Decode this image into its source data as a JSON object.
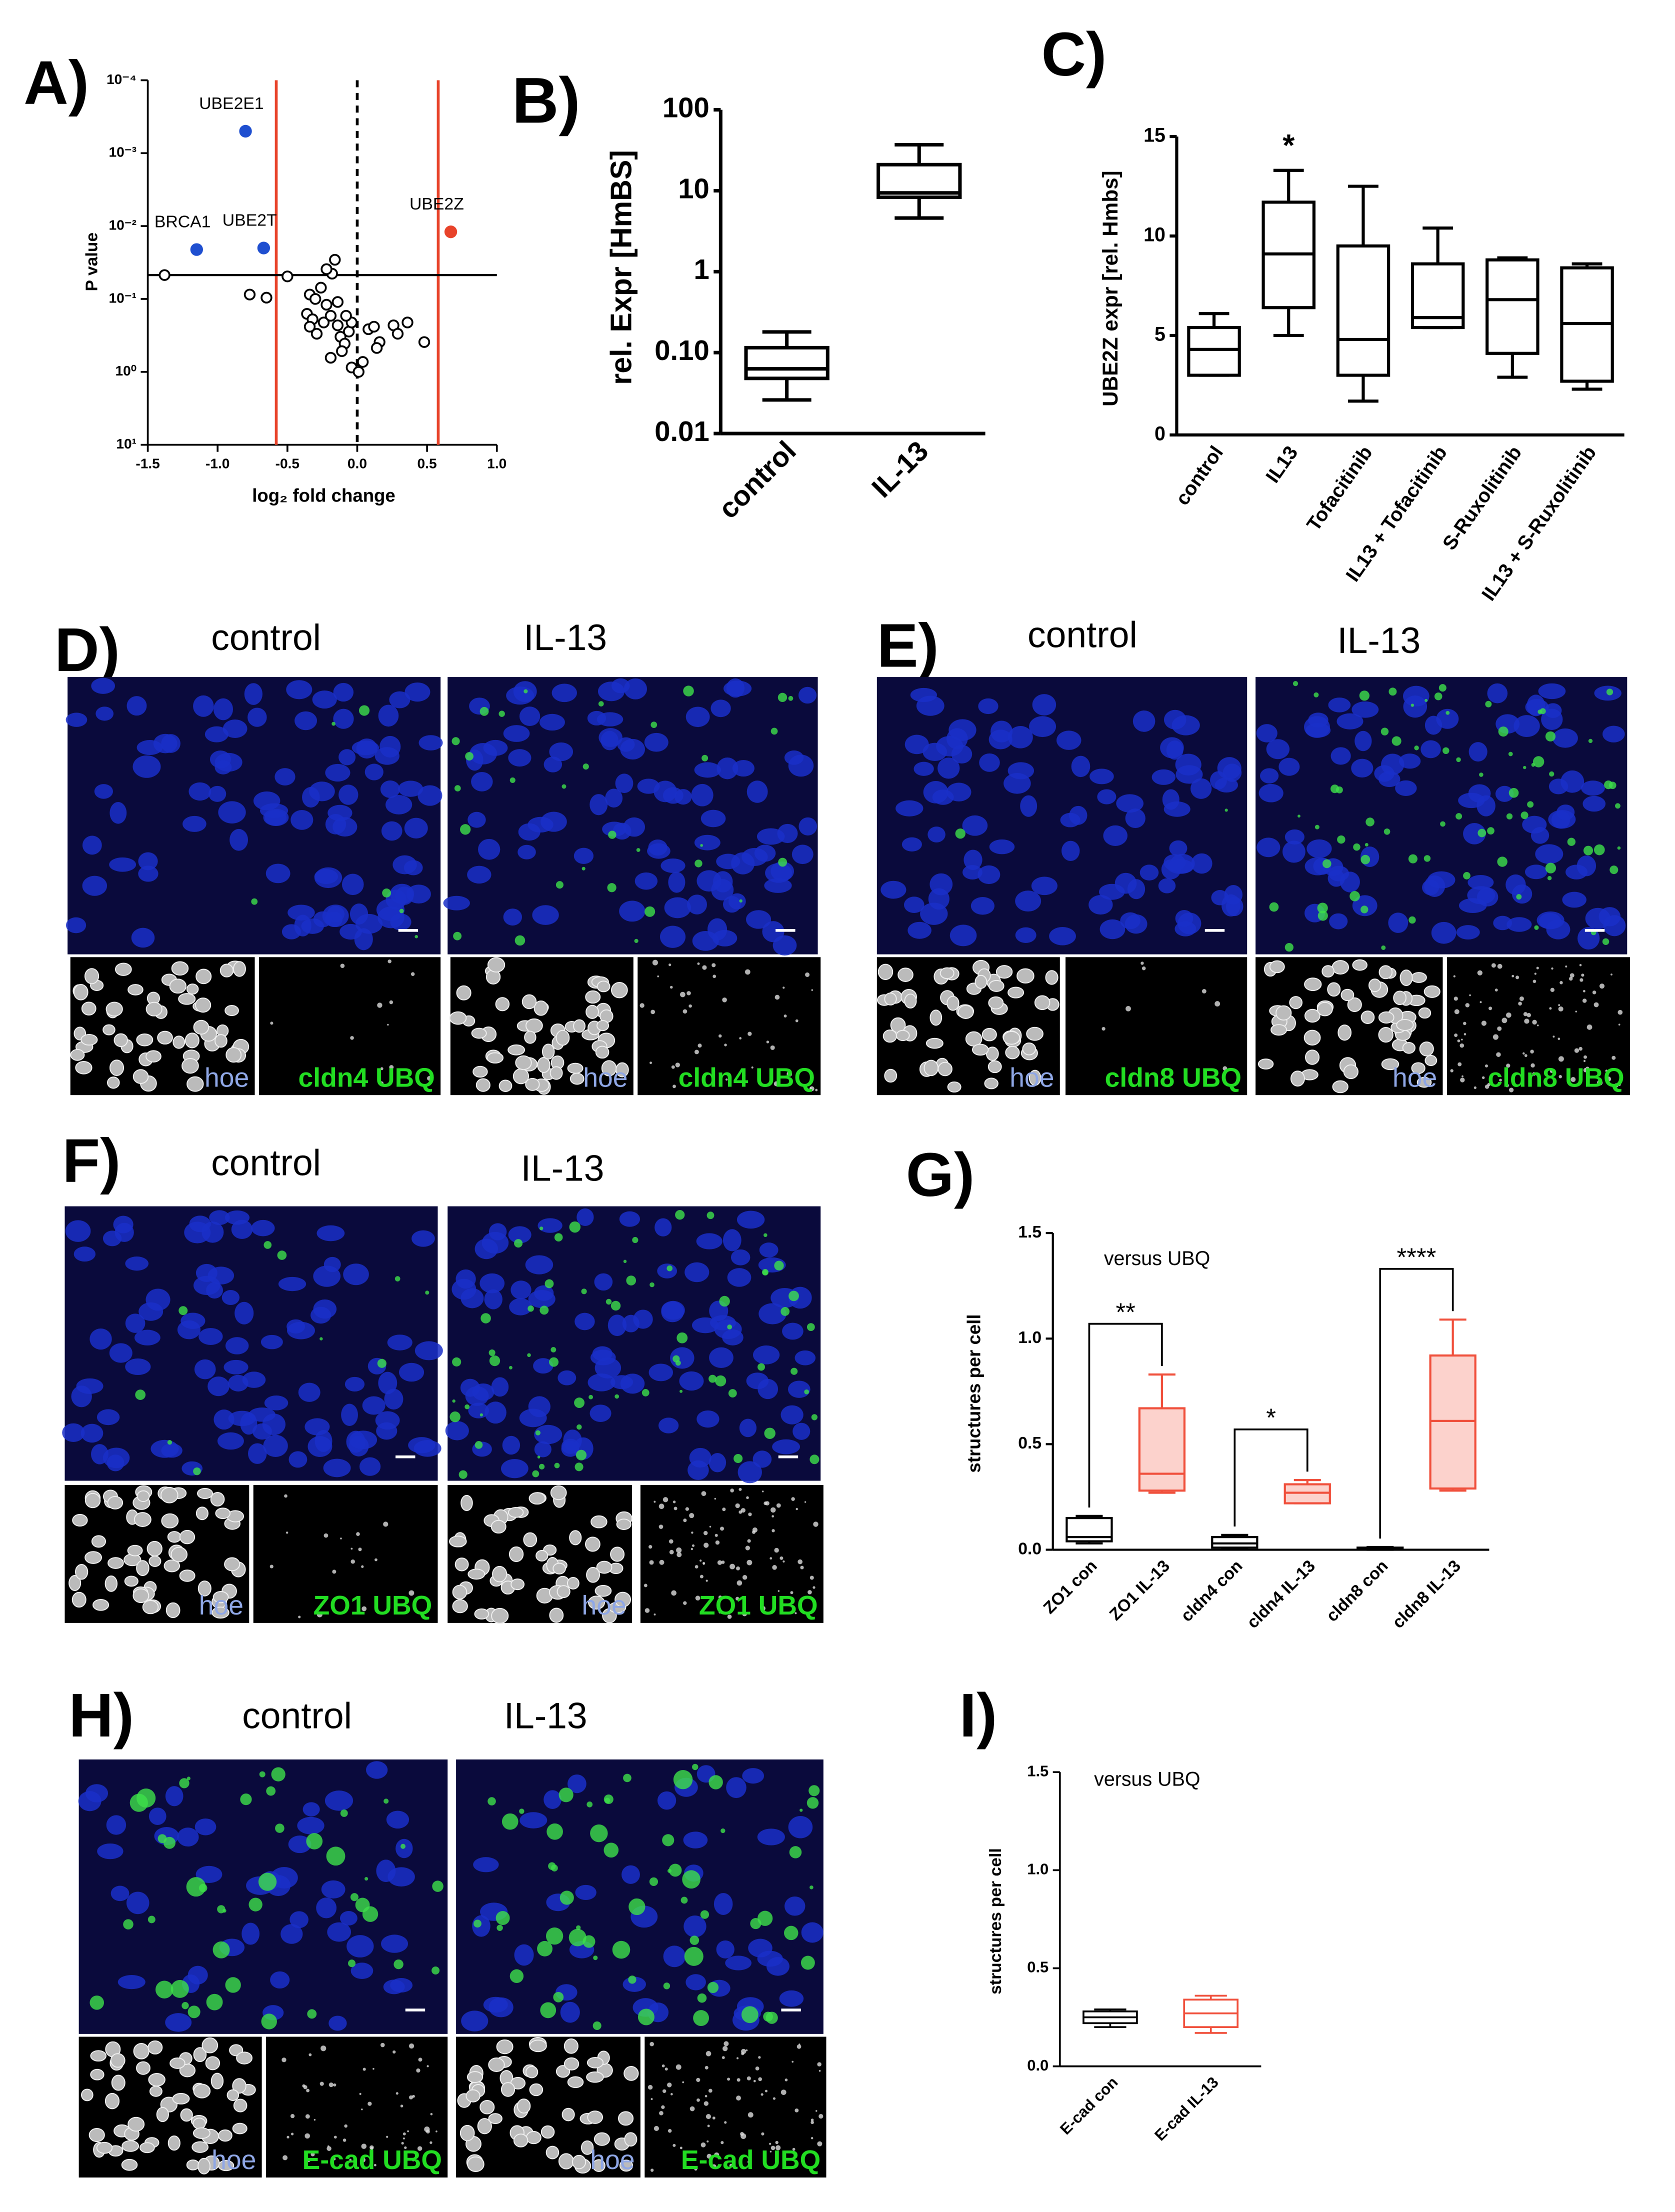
{
  "chart_data": [
    {
      "type": "scatter",
      "title": "A)",
      "xlabel": "log₂ fold change",
      "ylabel": "P value",
      "log_y": true,
      "xlim": [
        -1.5,
        1.0
      ],
      "xticks": [
        -1.5,
        {
          "value": -1.0,
          "label": "-1.0"
        },
        -0.5,
        {
          "value": 0.0,
          "label": "0.0"
        },
        0.5,
        {
          "value": 1.0,
          "label": "1.0"
        }
      ],
      "ylim": [
        10,
        0.0001
      ],
      "yticks": [
        {
          "value": 0.0001,
          "label": "10⁻⁴"
        },
        {
          "value": 0.001,
          "label": "10⁻³"
        },
        {
          "value": 0.01,
          "label": "10⁻²"
        },
        {
          "value": 0.1,
          "label": "10⁻¹"
        },
        {
          "value": 1,
          "label": "10⁰"
        },
        {
          "value": 10,
          "label": "10¹"
        }
      ],
      "x": [
        -1.38,
        -0.77,
        -0.65,
        -0.5,
        -0.34,
        -0.3,
        -0.36,
        -0.32,
        -0.34,
        -0.29,
        -0.24,
        -0.22,
        -0.26,
        -0.18,
        -0.16,
        -0.22,
        -0.14,
        -0.19,
        -0.12,
        -0.09,
        -0.06,
        -0.04,
        -0.11,
        -0.19,
        -0.04,
        0.01,
        0.04,
        0.08,
        0.12,
        0.16,
        0.14,
        0.26,
        0.29,
        0.36,
        0.48,
        -0.14,
        -0.08
      ],
      "values": [
        0.047,
        0.087,
        0.096,
        0.049,
        0.087,
        0.1,
        0.16,
        0.19,
        0.24,
        0.3,
        0.21,
        0.12,
        0.07,
        0.045,
        0.029,
        0.039,
        0.11,
        0.17,
        0.33,
        0.41,
        0.28,
        0.21,
        0.52,
        0.64,
        0.87,
        1.0,
        0.73,
        0.26,
        0.24,
        0.39,
        0.47,
        0.23,
        0.3,
        0.21,
        0.39,
        0.23,
        0.17
      ],
      "point_color": "#000000",
      "labeled_points": [
        {
          "label": "UBE2E1",
          "x": -0.8,
          "y": 0.0005,
          "color": "#1f4fd0"
        },
        {
          "label": "BRCA1",
          "x": -1.15,
          "y": 0.021,
          "color": "#1f4fd0"
        },
        {
          "label": "UBE2T",
          "x": -0.67,
          "y": 0.02,
          "color": "#1f4fd0"
        },
        {
          "label": "UBE2Z",
          "x": 0.67,
          "y": 0.012,
          "color": "#e8432a"
        }
      ],
      "vlines": [
        {
          "x": -0.58,
          "color": "#e8432a",
          "dashed": false
        },
        {
          "x": 0,
          "color": "#000000",
          "dashed": true
        },
        {
          "x": 0.58,
          "color": "#e8432a",
          "dashed": false
        }
      ],
      "hline": {
        "y": 0.047,
        "color": "#000000"
      }
    },
    {
      "type": "box",
      "title": "B)",
      "ylabel": "rel. Expr [HmBS]",
      "log_y": true,
      "ylim": [
        0.01,
        100
      ],
      "yticks": [
        0.01,
        {
          "value": 0.1,
          "label": "0.10"
        },
        1,
        10,
        100
      ],
      "categories": [
        "control",
        "IL-13"
      ],
      "values": [
        {
          "min": 0.026,
          "q1": 0.048,
          "median": 0.063,
          "q3": 0.115,
          "max": 0.18
        },
        {
          "min": 4.6,
          "q1": 8.3,
          "median": 9.4,
          "q3": 21,
          "max": 37
        }
      ],
      "box_colors": [
        "#000000",
        "#000000"
      ],
      "box_fills": [
        "#ffffff",
        "#ffffff"
      ]
    },
    {
      "type": "box",
      "title": "C)",
      "ylabel": "UBE2Z expr [rel. Hmbs]",
      "ylim": [
        0,
        15
      ],
      "yticks": [
        0,
        5,
        10,
        15
      ],
      "categories": [
        "control",
        "IL13",
        "Tofacitinib",
        "IL13 + Tofacitinib",
        "S-Ruxolitinib",
        "IL13 + S-Ruxolitinib"
      ],
      "values": [
        {
          "min": 3.0,
          "q1": 3.0,
          "median": 4.3,
          "q3": 5.4,
          "max": 6.1
        },
        {
          "min": 5.0,
          "q1": 6.4,
          "median": 9.1,
          "q3": 11.7,
          "max": 13.3
        },
        {
          "min": 1.7,
          "q1": 3.0,
          "median": 4.8,
          "q3": 9.5,
          "max": 12.5
        },
        {
          "min": 5.4,
          "q1": 5.4,
          "median": 5.9,
          "q3": 8.6,
          "max": 10.4
        },
        {
          "min": 2.9,
          "q1": 4.1,
          "median": 6.8,
          "q3": 8.8,
          "max": 8.9
        },
        {
          "min": 2.3,
          "q1": 2.7,
          "median": 5.6,
          "q3": 8.4,
          "max": 8.6
        }
      ],
      "box_colors": [
        "#000000",
        "#000000",
        "#000000",
        "#000000",
        "#000000",
        "#000000"
      ],
      "box_fills": [
        "#ffffff",
        "#ffffff",
        "#ffffff",
        "#ffffff",
        "#ffffff",
        "#ffffff"
      ],
      "annotations": [
        {
          "category": 1,
          "text": "*"
        }
      ]
    },
    {
      "type": "box",
      "title": "G)",
      "ylabel": "structures per cell",
      "annotation": "versus UBQ",
      "ylim": [
        0,
        1.5
      ],
      "yticks": [
        {
          "value": 0,
          "label": "0.0"
        },
        0.5,
        {
          "value": 1.0,
          "label": "1.0"
        },
        1.5
      ],
      "categories": [
        "ZO1 con",
        "ZO1 IL-13",
        "cldn4 con",
        "cldn4 IL-13",
        "cldn8 con",
        "cldn8 IL-13"
      ],
      "values": [
        {
          "min": 0.03,
          "q1": 0.04,
          "median": 0.06,
          "q3": 0.15,
          "max": 0.16
        },
        {
          "min": 0.27,
          "q1": 0.28,
          "median": 0.36,
          "q3": 0.67,
          "max": 0.83
        },
        {
          "min": 0.01,
          "q1": 0.01,
          "median": 0.03,
          "q3": 0.06,
          "max": 0.07
        },
        {
          "min": 0.22,
          "q1": 0.22,
          "median": 0.27,
          "q3": 0.31,
          "max": 0.33
        },
        {
          "min": 0.0,
          "q1": 0.003,
          "median": 0.007,
          "q3": 0.01,
          "max": 0.013
        },
        {
          "min": 0.28,
          "q1": 0.29,
          "median": 0.61,
          "q3": 0.92,
          "max": 1.09
        }
      ],
      "box_colors": [
        "#000000",
        "#f0503c",
        "#000000",
        "#f0503c",
        "#000000",
        "#f0503c"
      ],
      "box_fills": [
        "#ffffff",
        "#fcd2cc",
        "#ffffff",
        "#fcd2cc",
        "#ffffff",
        "#fcd2cc"
      ],
      "brackets": [
        {
          "from": 0,
          "to": 1,
          "text": "**"
        },
        {
          "from": 2,
          "to": 3,
          "text": "*"
        },
        {
          "from": 4,
          "to": 5,
          "text": "****"
        }
      ]
    },
    {
      "type": "box",
      "title": "I)",
      "ylabel": "structures per cell",
      "annotation": "versus UBQ",
      "ylim": [
        0,
        1.5
      ],
      "yticks": [
        {
          "value": 0,
          "label": "0.0"
        },
        0.5,
        {
          "value": 1.0,
          "label": "1.0"
        },
        1.5
      ],
      "categories": [
        "E-cad con",
        "E-cad IL-13"
      ],
      "values": [
        {
          "min": 0.2,
          "q1": 0.22,
          "median": 0.25,
          "q3": 0.28,
          "max": 0.29
        },
        {
          "min": 0.17,
          "q1": 0.2,
          "median": 0.27,
          "q3": 0.34,
          "max": 0.36
        }
      ],
      "box_colors": [
        "#000000",
        "#f0503c"
      ],
      "box_fills": [
        "#ffffff",
        "#ffffff"
      ]
    }
  ],
  "image_panels": [
    {
      "title": "D)",
      "conditions": [
        "control",
        "IL-13"
      ],
      "channels": [
        [
          "hoe",
          "cldn4 UBQ"
        ],
        [
          "hoe",
          "cldn4 UBQ"
        ]
      ]
    },
    {
      "title": "E)",
      "conditions": [
        "control",
        "IL-13"
      ],
      "channels": [
        [
          "hoe",
          "cldn8 UBQ"
        ],
        [
          "hoe",
          "cldn8 UBQ"
        ]
      ]
    },
    {
      "title": "F)",
      "conditions": [
        "control",
        "IL-13"
      ],
      "channels": [
        [
          "hoe",
          "ZO1 UBQ"
        ],
        [
          "hoe",
          "ZO1 UBQ"
        ]
      ]
    },
    {
      "title": "H)",
      "conditions": [
        "control",
        "IL-13"
      ],
      "channels": [
        [
          "hoe",
          "E-cad UBQ"
        ],
        [
          "hoe",
          "E-cad UBQ"
        ]
      ]
    }
  ]
}
